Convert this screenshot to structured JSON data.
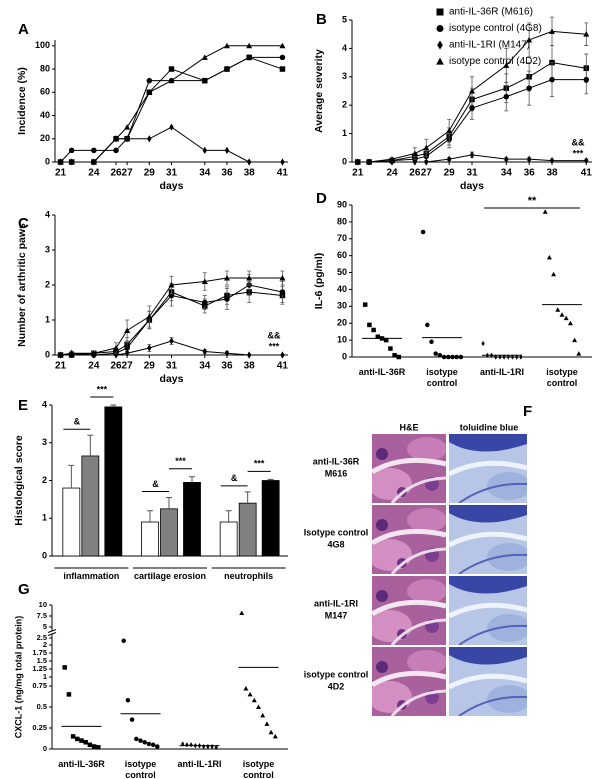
{
  "chart_data": [
    {
      "type": "line",
      "panel": "A",
      "ylabel": "Incidence (%)",
      "xlabel": "days",
      "x": [
        21,
        22,
        24,
        26,
        27,
        29,
        31,
        34,
        36,
        38,
        41
      ],
      "xlim": [
        20.5,
        41.5
      ],
      "xticks": [
        21,
        24,
        26,
        27,
        29,
        31,
        34,
        36,
        38,
        41
      ],
      "ylim": [
        0,
        105
      ],
      "yticks": [
        0,
        20,
        40,
        60,
        80,
        100
      ],
      "grid": false,
      "series": [
        {
          "marker": "square",
          "color": "#000000",
          "values": [
            0,
            0,
            0,
            20,
            20,
            60,
            80,
            70,
            80,
            90,
            80
          ]
        },
        {
          "marker": "circle",
          "color": "#000000",
          "values": [
            0,
            10,
            10,
            10,
            20,
            70,
            70,
            70,
            80,
            90,
            90
          ]
        },
        {
          "marker": "diamond",
          "color": "#000000",
          "values": [
            0,
            0,
            0,
            20,
            20,
            20,
            30,
            10,
            10,
            0,
            0
          ]
        },
        {
          "marker": "triangle",
          "color": "#000000",
          "values": [
            0,
            0,
            0,
            20,
            30,
            60,
            70,
            90,
            100,
            100,
            100
          ]
        }
      ]
    },
    {
      "type": "line",
      "panel": "B",
      "ylabel": "Average severity",
      "xlabel": "days",
      "x": [
        21,
        22,
        24,
        26,
        27,
        29,
        31,
        34,
        36,
        38,
        41
      ],
      "xlim": [
        20.5,
        41.5
      ],
      "xticks": [
        21,
        24,
        26,
        27,
        29,
        31,
        34,
        36,
        38,
        41
      ],
      "ylim": [
        0,
        5
      ],
      "yticks": [
        0,
        1,
        2,
        3,
        4,
        5
      ],
      "grid": false,
      "legend": "top-right",
      "annotations": [
        "&&",
        "***"
      ],
      "series": [
        {
          "name": "anti-IL-36R (M616)",
          "marker": "square",
          "color": "#000000",
          "values": [
            0,
            0,
            0.05,
            0.2,
            0.3,
            0.9,
            2.2,
            2.6,
            3.0,
            3.5,
            3.3
          ],
          "errors": [
            0,
            0,
            0.05,
            0.1,
            0.15,
            0.3,
            0.4,
            0.5,
            0.5,
            0.6,
            0.5
          ]
        },
        {
          "name": "isotype control (4G8)",
          "marker": "circle",
          "color": "#000000",
          "values": [
            0,
            0,
            0.05,
            0.1,
            0.2,
            0.8,
            1.9,
            2.3,
            2.6,
            2.9,
            2.9
          ],
          "errors": [
            0,
            0,
            0.05,
            0.1,
            0.15,
            0.3,
            0.4,
            0.5,
            0.6,
            0.6,
            0.5
          ]
        },
        {
          "name": "anti-IL-1RI (M147)",
          "marker": "diamond",
          "color": "#000000",
          "values": [
            0,
            0,
            0,
            0,
            0,
            0.1,
            0.25,
            0.1,
            0.1,
            0.05,
            0.05
          ],
          "errors": [
            0,
            0,
            0,
            0,
            0,
            0.05,
            0.1,
            0.05,
            0.05,
            0.05,
            0.05
          ]
        },
        {
          "name": "isotype control (4D2)",
          "marker": "triangle",
          "color": "#000000",
          "values": [
            0,
            0,
            0.1,
            0.3,
            0.5,
            1.1,
            2.5,
            3.4,
            4.3,
            4.6,
            4.5
          ],
          "errors": [
            0,
            0,
            0.05,
            0.2,
            0.3,
            0.4,
            0.5,
            0.6,
            0.6,
            0.5,
            0.4
          ]
        }
      ]
    },
    {
      "type": "line",
      "panel": "C",
      "ylabel": "Number of arthritic paws",
      "xlabel": "days",
      "x": [
        21,
        22,
        24,
        26,
        27,
        29,
        31,
        34,
        36,
        38,
        41
      ],
      "xlim": [
        20.5,
        41.5
      ],
      "xticks": [
        21,
        24,
        26,
        27,
        29,
        31,
        34,
        36,
        38,
        41
      ],
      "ylim": [
        0,
        4
      ],
      "yticks": [
        0,
        1,
        2,
        3,
        4
      ],
      "grid": false,
      "annotations": [
        "&&",
        "***"
      ],
      "series": [
        {
          "marker": "square",
          "color": "#000000",
          "values": [
            0,
            0,
            0.05,
            0.1,
            0.3,
            1.0,
            1.8,
            1.4,
            1.7,
            1.8,
            1.7
          ],
          "errors": [
            0,
            0,
            0.05,
            0.1,
            0.2,
            0.25,
            0.25,
            0.2,
            0.25,
            0.3,
            0.25
          ]
        },
        {
          "marker": "circle",
          "color": "#000000",
          "values": [
            0,
            0,
            0,
            0.05,
            0.2,
            1.0,
            1.7,
            1.5,
            1.6,
            2.0,
            1.8
          ],
          "errors": [
            0,
            0,
            0,
            0.05,
            0.15,
            0.25,
            0.3,
            0.2,
            0.3,
            0.3,
            0.3
          ]
        },
        {
          "marker": "diamond",
          "color": "#000000",
          "values": [
            0,
            0.05,
            0,
            0,
            0.05,
            0.2,
            0.4,
            0.1,
            0.05,
            0,
            0
          ],
          "errors": [
            0,
            0.05,
            0,
            0,
            0.05,
            0.1,
            0.1,
            0.05,
            0.05,
            0,
            0
          ]
        },
        {
          "marker": "triangle",
          "color": "#000000",
          "values": [
            0,
            0.05,
            0.05,
            0.2,
            0.7,
            1.1,
            2.0,
            2.1,
            2.2,
            2.2,
            2.2
          ],
          "errors": [
            0,
            0.05,
            0.05,
            0.15,
            0.3,
            0.3,
            0.25,
            0.25,
            0.2,
            0.2,
            0.2
          ]
        }
      ]
    },
    {
      "type": "dotplot",
      "panel": "D",
      "ylabel": "IL-6 (pg/ml)",
      "categories": [
        "anti-IL-36R",
        "isotype control",
        "anti-IL-1RI",
        "isotype control"
      ],
      "markers": [
        "square",
        "circle",
        "diamond",
        "triangle"
      ],
      "ylim": [
        0,
        90
      ],
      "yticks": [
        0,
        10,
        20,
        30,
        40,
        50,
        60,
        70,
        80,
        90
      ],
      "grid": false,
      "annotations": [
        "**"
      ],
      "points": [
        [
          31,
          19,
          16,
          12,
          11,
          10,
          5,
          1,
          0
        ],
        [
          74,
          19,
          9,
          2,
          1,
          0,
          0,
          0,
          0,
          0
        ],
        [
          8,
          1,
          1,
          0,
          0,
          0,
          0,
          0,
          0,
          0
        ],
        [
          86,
          59,
          49,
          28,
          25,
          23,
          20,
          10,
          2
        ]
      ],
      "means": [
        11,
        11.5,
        1,
        31
      ]
    },
    {
      "type": "bar",
      "panel": "E",
      "ylabel": "Histological score",
      "categories": [
        "inflammation",
        "cartilage erosion",
        "neutrophils"
      ],
      "ylim": [
        0,
        4
      ],
      "yticks": [
        0,
        1,
        2,
        3,
        4
      ],
      "grid": false,
      "annotations": [
        [
          "&",
          "***"
        ],
        [
          "&",
          "***"
        ],
        [
          "&",
          "***"
        ]
      ],
      "series": [
        {
          "color": "#ffffff",
          "values": [
            1.8,
            0.9,
            0.9
          ],
          "errors": [
            0.6,
            0.3,
            0.3
          ]
        },
        {
          "color": "#808080",
          "values": [
            2.65,
            1.25,
            1.4
          ],
          "errors": [
            0.55,
            0.3,
            0.3
          ]
        },
        {
          "color": "#000000",
          "values": [
            3.95,
            1.95,
            2.0
          ],
          "errors": [
            0.05,
            0.15,
            0.03
          ]
        }
      ]
    },
    {
      "type": "dotplot",
      "panel": "G",
      "ylabel": "CXCL-1 (ng/mg total protein)",
      "scale": "broken",
      "categories": [
        "anti-IL-36R",
        "isotype control",
        "anti-IL-1RI",
        "isotype control"
      ],
      "markers": [
        "square",
        "circle",
        "diamond",
        "triangle"
      ],
      "ylim": [
        0,
        10
      ],
      "yticks": [
        0,
        0.25,
        0.5,
        0.75,
        1,
        1.25,
        1.5,
        1.75,
        2,
        2.5,
        5,
        7.5,
        10
      ],
      "grid": false,
      "points": [
        [
          1.3,
          0.65,
          0.15,
          0.12,
          0.1,
          0.08,
          0.05,
          0.03,
          0.02
        ],
        [
          2.3,
          0.58,
          0.35,
          0.12,
          0.1,
          0.08,
          0.06,
          0.05,
          0.03
        ],
        [
          0.06,
          0.05,
          0.05,
          0.04,
          0.04,
          0.03,
          0.03,
          0.03,
          0.02
        ],
        [
          8.2,
          0.72,
          0.65,
          0.58,
          0.5,
          0.4,
          0.3,
          0.2,
          0.15
        ]
      ],
      "means": [
        0.27,
        0.42,
        0.04,
        1.3
      ]
    }
  ],
  "histology": {
    "panel": "F",
    "headers": [
      "H&E",
      "toluidine blue"
    ],
    "rows": [
      {
        "label": "anti-IL-36R",
        "code": "M616"
      },
      {
        "label": "Isotype control",
        "code": "4G8"
      },
      {
        "label": "anti-IL-1RI",
        "code": "M147"
      },
      {
        "label": "isotype control",
        "code": "4D2"
      }
    ]
  }
}
